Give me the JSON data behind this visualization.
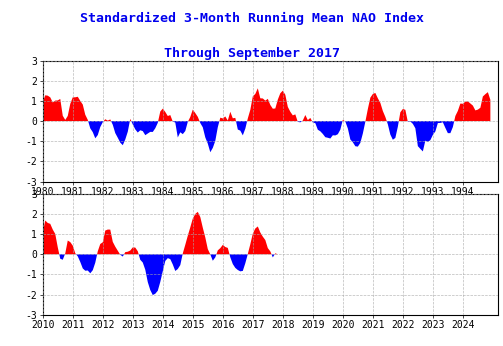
{
  "title_line1": "Standardized 3-Month Running Mean NAO Index",
  "title_line2": "Through September 2017",
  "title_color": "#0000ee",
  "title_fontsize": 9.5,
  "background_color": "#ffffff",
  "panel1_xlim": [
    1980.0,
    1995.17
  ],
  "panel2_xlim": [
    2010.0,
    2025.17
  ],
  "ylim": [
    -3,
    3
  ],
  "positive_color": "#ff0000",
  "negative_color": "#0000ff",
  "grid_color": "#aaaaaa",
  "panel1_xticks": [
    1980,
    1981,
    1982,
    1983,
    1984,
    1985,
    1986,
    1987,
    1988,
    1989,
    1990,
    1991,
    1992,
    1993,
    1994
  ],
  "panel2_xticks": [
    2010,
    2011,
    2012,
    2013,
    2014,
    2015,
    2016,
    2017,
    2018,
    2019,
    2020,
    2021,
    2022,
    2023,
    2024
  ],
  "yticks": [
    -3,
    -2,
    -1,
    0,
    1,
    2,
    3
  ],
  "ytick_labels": [
    "-3",
    "-2",
    "-1",
    "0",
    "1",
    "2",
    "3"
  ],
  "tick_fontsize": 7,
  "xlabel_fontsize": 7
}
